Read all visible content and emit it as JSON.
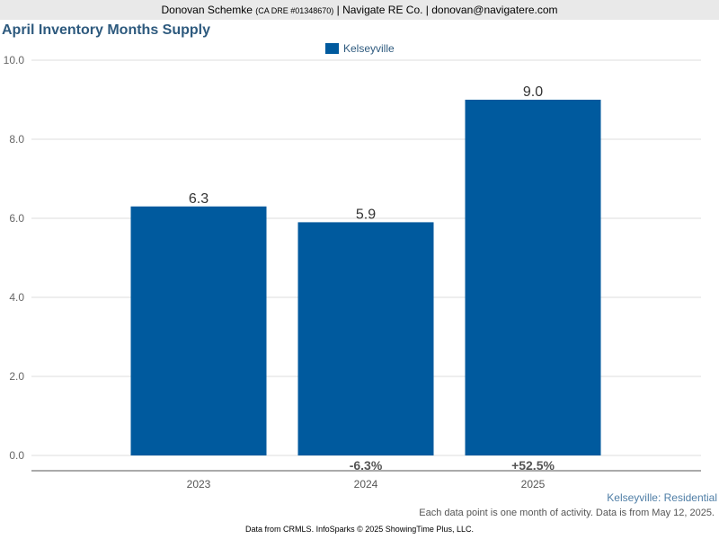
{
  "header": {
    "name": "Donovan Schemke",
    "license": "(CA DRE #01348670)",
    "company_email": "| Navigate RE Co. | donovan@navigatere.com"
  },
  "chart_data": {
    "type": "bar",
    "title": "April Inventory Months Supply",
    "categories": [
      "2023",
      "2024",
      "2025"
    ],
    "series": [
      {
        "name": "Kelseyville",
        "values": [
          6.3,
          5.9,
          9.0
        ],
        "color": "#005a9e"
      }
    ],
    "data_labels": [
      "6.3",
      "5.9",
      "9.0"
    ],
    "change_labels": [
      "",
      "-6.3%",
      "+52.5%"
    ],
    "ylim": [
      0,
      10
    ],
    "yticks": [
      "0.0",
      "2.0",
      "4.0",
      "6.0",
      "8.0",
      "10.0"
    ],
    "grid": true,
    "legend_position": "top-center",
    "xlabel": "",
    "ylabel": ""
  },
  "subtitle": "Kelseyville: Residential",
  "note": "Each data point is one month of activity. Data is from May 12, 2025.",
  "footer": "Data from CRMLS. InfoSparks © 2025 ShowingTime Plus, LLC."
}
